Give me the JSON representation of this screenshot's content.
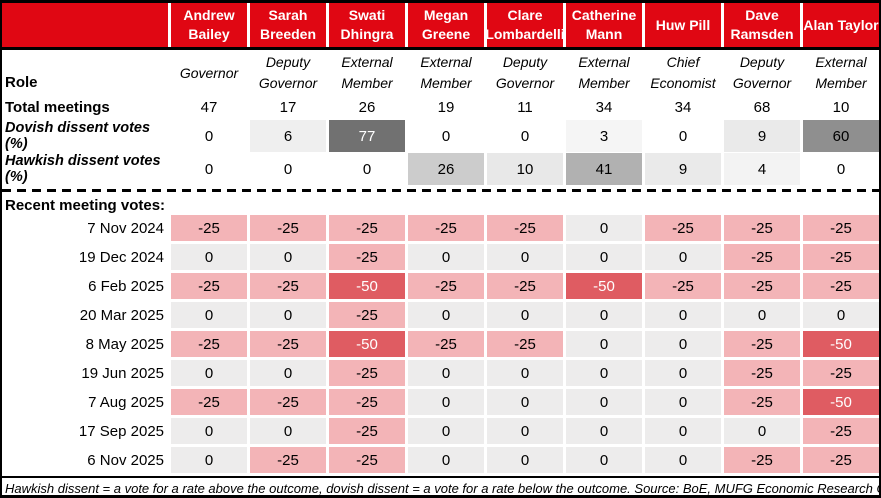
{
  "labels": {
    "role": "Role",
    "total_meetings": "Total meetings",
    "dovish": "Dovish dissent votes (%)",
    "hawkish": "Hawkish dissent votes (%)",
    "recent": "Recent meeting votes:"
  },
  "footer": "Hawkish dissent = a vote for a rate above the outcome, dovish dissent = a vote for a rate below the outcome. Source: BoE, MUFG Economic Research Office",
  "colors": {
    "header_red": "#e00713",
    "vote_hold_bg": "#edecec",
    "vote_cut25_bg": "#f3b4b7",
    "vote_cut50_bg": "#df5c62",
    "border_black": "#000000"
  },
  "chart_data": {
    "type": "table",
    "title": "",
    "members": [
      {
        "name": "Andrew Bailey",
        "role": "Governor"
      },
      {
        "name": "Sarah Breeden",
        "role": "Deputy Governor"
      },
      {
        "name": "Swati Dhingra",
        "role": "External Member"
      },
      {
        "name": "Megan Greene",
        "role": "External Member"
      },
      {
        "name": "Clare Lombardelli",
        "role": "Deputy Governor"
      },
      {
        "name": "Catherine Mann",
        "role": "External Member"
      },
      {
        "name": "Huw Pill",
        "role": "Chief Economist"
      },
      {
        "name": "Dave Ramsden",
        "role": "Deputy Governor"
      },
      {
        "name": "Alan Taylor",
        "role": "External Member"
      }
    ],
    "total_meetings": [
      47,
      17,
      26,
      19,
      11,
      34,
      34,
      68,
      10
    ],
    "dovish_dissent_pct": [
      0,
      6,
      77,
      0,
      0,
      3,
      0,
      9,
      60
    ],
    "hawkish_dissent_pct": [
      0,
      0,
      0,
      26,
      10,
      41,
      9,
      4,
      0
    ],
    "meetings": [
      {
        "date": "7 Nov 2024",
        "votes": [
          -25,
          -25,
          -25,
          -25,
          -25,
          0,
          -25,
          -25,
          -25
        ]
      },
      {
        "date": "19 Dec 2024",
        "votes": [
          0,
          0,
          -25,
          0,
          0,
          0,
          0,
          -25,
          -25
        ]
      },
      {
        "date": "6 Feb 2025",
        "votes": [
          -25,
          -25,
          -50,
          -25,
          -25,
          -50,
          -25,
          -25,
          -25
        ]
      },
      {
        "date": "20 Mar 2025",
        "votes": [
          0,
          0,
          -25,
          0,
          0,
          0,
          0,
          0,
          0
        ]
      },
      {
        "date": "8 May 2025",
        "votes": [
          -25,
          -25,
          -50,
          -25,
          -25,
          0,
          0,
          -25,
          -50
        ]
      },
      {
        "date": "19 Jun 2025",
        "votes": [
          0,
          0,
          -25,
          0,
          0,
          0,
          0,
          -25,
          -25
        ]
      },
      {
        "date": "7 Aug 2025",
        "votes": [
          -25,
          -25,
          -25,
          0,
          0,
          0,
          0,
          -25,
          -50
        ]
      },
      {
        "date": "17 Sep 2025",
        "votes": [
          0,
          0,
          -25,
          0,
          0,
          0,
          0,
          0,
          -25
        ]
      },
      {
        "date": "6 Nov 2025",
        "votes": [
          0,
          -25,
          -25,
          0,
          0,
          0,
          0,
          -25,
          -25
        ]
      }
    ]
  }
}
